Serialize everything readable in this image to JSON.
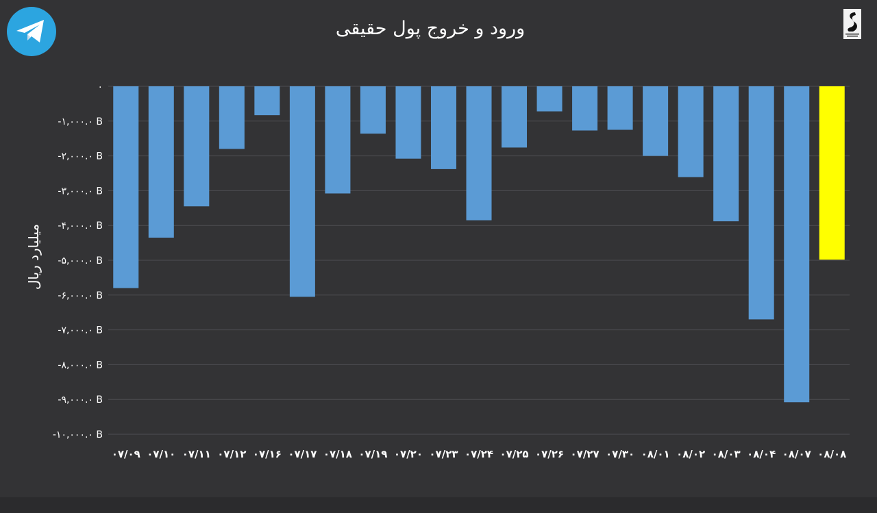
{
  "colors": {
    "background": "#333335",
    "bar": "#5b9bd5",
    "highlight_bar": "#ffff00",
    "gridline": "#4e4e52",
    "text": "#ffffff",
    "telegram": "#2ca5e0"
  },
  "icons": [
    "telegram-icon",
    "brand-logo"
  ],
  "chart_data": {
    "type": "bar",
    "title": "ورود و خروج پول حقیقی",
    "ylabel": "میلیارد ریال",
    "xlabel": "",
    "ylim": [
      -10000,
      0
    ],
    "grid": true,
    "y_ticks": [
      0,
      -1000,
      -2000,
      -3000,
      -4000,
      -5000,
      -6000,
      -7000,
      -8000,
      -9000,
      -10000
    ],
    "y_tick_labels": [
      "۰",
      "-۱,۰۰۰.۰ B",
      "-۲,۰۰۰.۰ B",
      "-۳,۰۰۰.۰ B",
      "-۴,۰۰۰.۰ B",
      "-۵,۰۰۰.۰ B",
      "-۶,۰۰۰.۰ B",
      "-۷,۰۰۰.۰ B",
      "-۸,۰۰۰.۰ B",
      "-۹,۰۰۰.۰ B",
      "-۱۰,۰۰۰.۰ B"
    ],
    "categories": [
      "۰۷/۰۹",
      "۰۷/۱۰",
      "۰۷/۱۱",
      "۰۷/۱۲",
      "۰۷/۱۶",
      "۰۷/۱۷",
      "۰۷/۱۸",
      "۰۷/۱۹",
      "۰۷/۲۰",
      "۰۷/۲۳",
      "۰۷/۲۴",
      "۰۷/۲۵",
      "۰۷/۲۶",
      "۰۷/۲۷",
      "۰۷/۳۰",
      "۰۸/۰۱",
      "۰۸/۰۲",
      "۰۸/۰۳",
      "۰۸/۰۴",
      "۰۸/۰۷",
      "۰۸/۰۸"
    ],
    "values": [
      -5800,
      -4350,
      -3450,
      -1800,
      -830,
      -6050,
      -3080,
      -1360,
      -2080,
      -2380,
      -3850,
      -1760,
      -720,
      -1270,
      -1250,
      -2000,
      -2610,
      -3880,
      -6700,
      -9080,
      -4980
    ],
    "highlight_index": 20
  }
}
